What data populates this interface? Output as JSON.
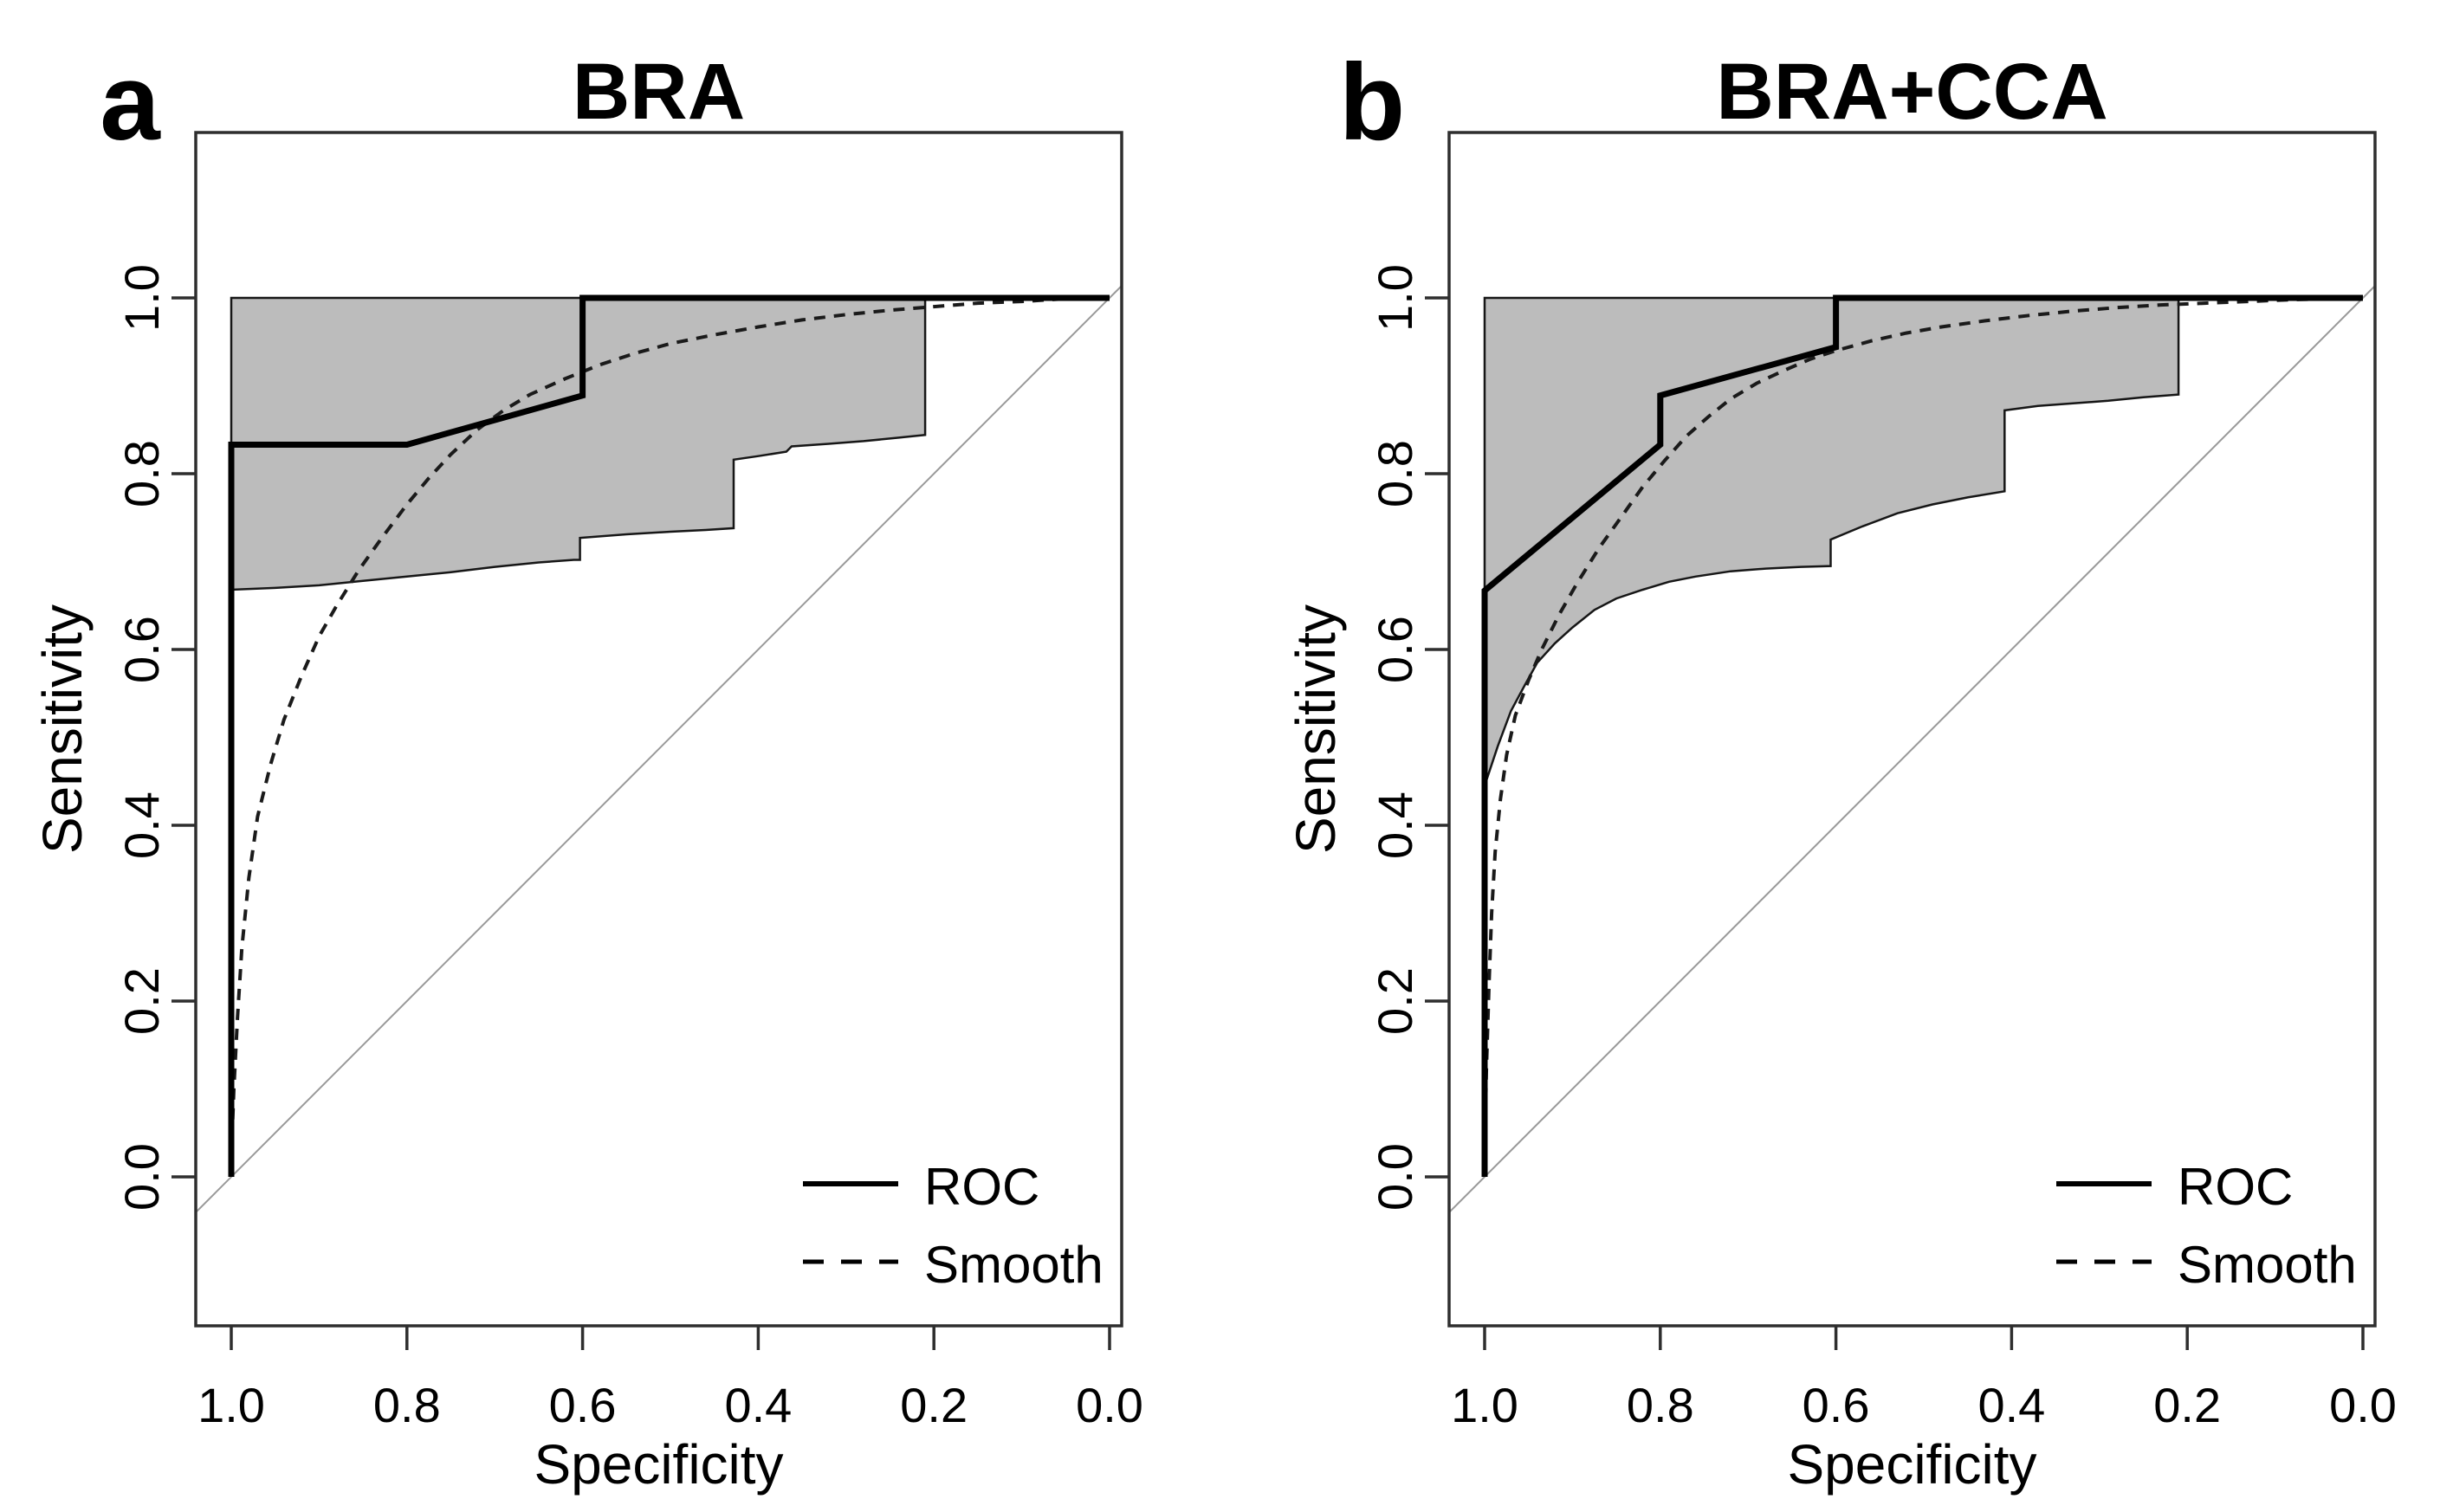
{
  "figure": {
    "background": "#ffffff",
    "panels": 2
  },
  "colors": {
    "band_fill": "#bcbcbc",
    "band_edge": "#161616",
    "roc_line": "#000000",
    "smooth_line": "#1a1a1a",
    "diagonal": "#999999",
    "box": "#2e2e2e",
    "text": "#000000"
  },
  "chart_data": [
    {
      "type": "line",
      "panel_letter": "a",
      "title": "BRA",
      "xlabel": "Specificity",
      "ylabel": "Sensitivity",
      "x_axis": {
        "label": "Specificity",
        "tick_labels": [
          "1.0",
          "0.8",
          "0.6",
          "0.4",
          "0.2",
          "0.0"
        ],
        "tick_values": [
          1.0,
          0.8,
          0.6,
          0.4,
          0.2,
          0.0
        ],
        "reversed": true,
        "range": [
          1.04,
          -0.014
        ],
        "grid": false
      },
      "y_axis": {
        "label": "Sensitivity",
        "tick_labels": [
          "0.0",
          "0.2",
          "0.4",
          "0.6",
          "0.8",
          "1.0"
        ],
        "tick_values": [
          0.0,
          0.2,
          0.4,
          0.6,
          0.8,
          1.0
        ],
        "range": [
          -0.17,
          1.19
        ],
        "grid": false
      },
      "legend": [
        {
          "label": "ROC",
          "style": "solid"
        },
        {
          "label": "Smooth",
          "style": "dashed"
        }
      ],
      "legend_position": "bottom-right",
      "series": [
        {
          "name": "ROC",
          "style": "solid",
          "points": [
            [
              1.0,
              0.0
            ],
            [
              1.0,
              0.833
            ],
            [
              0.8,
              0.833
            ],
            [
              0.6,
              0.889
            ],
            [
              0.6,
              1.0
            ],
            [
              0.0,
              1.0
            ]
          ]
        },
        {
          "name": "Smooth",
          "style": "dashed",
          "points": [
            [
              1.0,
              0.02
            ],
            [
              0.997,
              0.1
            ],
            [
              0.993,
              0.18
            ],
            [
              0.988,
              0.26
            ],
            [
              0.98,
              0.34
            ],
            [
              0.97,
              0.41
            ],
            [
              0.955,
              0.47
            ],
            [
              0.94,
              0.52
            ],
            [
              0.92,
              0.57
            ],
            [
              0.9,
              0.615
            ],
            [
              0.88,
              0.65
            ],
            [
              0.855,
              0.69
            ],
            [
              0.83,
              0.725
            ],
            [
              0.8,
              0.765
            ],
            [
              0.775,
              0.795
            ],
            [
              0.75,
              0.822
            ],
            [
              0.72,
              0.85
            ],
            [
              0.69,
              0.872
            ],
            [
              0.66,
              0.89
            ],
            [
              0.62,
              0.908
            ],
            [
              0.58,
              0.924
            ],
            [
              0.54,
              0.937
            ],
            [
              0.5,
              0.948
            ],
            [
              0.45,
              0.958
            ],
            [
              0.4,
              0.967
            ],
            [
              0.35,
              0.975
            ],
            [
              0.3,
              0.981
            ],
            [
              0.25,
              0.986
            ],
            [
              0.2,
              0.99
            ],
            [
              0.15,
              0.994
            ],
            [
              0.1,
              0.996
            ],
            [
              0.05,
              0.999
            ],
            [
              0.0,
              1.0
            ]
          ]
        },
        {
          "name": "Chance",
          "style": "reference-diagonal",
          "points": [
            [
              1.0,
              0.0
            ],
            [
              0.0,
              1.0
            ]
          ]
        }
      ],
      "confidence_band": {
        "x_range": [
          1.0,
          0.21
        ],
        "upper": [
          [
            1.0,
            1.0
          ],
          [
            0.21,
            1.0
          ]
        ],
        "lower": [
          [
            1.0,
            0.668
          ],
          [
            0.95,
            0.67
          ],
          [
            0.9,
            0.673
          ],
          [
            0.85,
            0.678
          ],
          [
            0.8,
            0.683
          ],
          [
            0.75,
            0.688
          ],
          [
            0.7,
            0.694
          ],
          [
            0.65,
            0.699
          ],
          [
            0.61,
            0.702
          ],
          [
            0.603,
            0.702
          ],
          [
            0.603,
            0.727
          ],
          [
            0.55,
            0.731
          ],
          [
            0.5,
            0.734
          ],
          [
            0.46,
            0.736
          ],
          [
            0.428,
            0.738
          ],
          [
            0.428,
            0.816
          ],
          [
            0.4,
            0.82
          ],
          [
            0.368,
            0.825
          ],
          [
            0.362,
            0.831
          ],
          [
            0.32,
            0.834
          ],
          [
            0.28,
            0.837
          ],
          [
            0.24,
            0.841
          ],
          [
            0.21,
            0.844
          ]
        ]
      }
    },
    {
      "type": "line",
      "panel_letter": "b",
      "title": "BRA+CCA",
      "xlabel": "Specificity",
      "ylabel": "Sensitivity",
      "x_axis": {
        "label": "Specificity",
        "tick_labels": [
          "1.0",
          "0.8",
          "0.6",
          "0.4",
          "0.2",
          "0.0"
        ],
        "tick_values": [
          1.0,
          0.8,
          0.6,
          0.4,
          0.2,
          0.0
        ],
        "reversed": true,
        "range": [
          1.04,
          -0.014
        ],
        "grid": false
      },
      "y_axis": {
        "label": "Sensitivity",
        "tick_labels": [
          "0.0",
          "0.2",
          "0.4",
          "0.6",
          "0.8",
          "1.0"
        ],
        "tick_values": [
          0.0,
          0.2,
          0.4,
          0.6,
          0.8,
          1.0
        ],
        "range": [
          -0.17,
          1.19
        ],
        "grid": false
      },
      "legend": [
        {
          "label": "ROC",
          "style": "solid"
        },
        {
          "label": "Smooth",
          "style": "dashed"
        }
      ],
      "legend_position": "bottom-right",
      "series": [
        {
          "name": "ROC",
          "style": "solid",
          "points": [
            [
              1.0,
              0.0
            ],
            [
              1.0,
              0.667
            ],
            [
              0.8,
              0.833
            ],
            [
              0.8,
              0.889
            ],
            [
              0.6,
              0.944
            ],
            [
              0.6,
              1.0
            ],
            [
              0.0,
              1.0
            ]
          ]
        },
        {
          "name": "Smooth",
          "style": "dashed",
          "points": [
            [
              1.0,
              0.02
            ],
            [
              0.998,
              0.12
            ],
            [
              0.995,
              0.22
            ],
            [
              0.992,
              0.3
            ],
            [
              0.988,
              0.37
            ],
            [
              0.982,
              0.43
            ],
            [
              0.975,
              0.48
            ],
            [
              0.965,
              0.525
            ],
            [
              0.95,
              0.565
            ],
            [
              0.935,
              0.6
            ],
            [
              0.915,
              0.64
            ],
            [
              0.895,
              0.675
            ],
            [
              0.87,
              0.715
            ],
            [
              0.845,
              0.75
            ],
            [
              0.82,
              0.785
            ],
            [
              0.795,
              0.815
            ],
            [
              0.77,
              0.843
            ],
            [
              0.745,
              0.865
            ],
            [
              0.72,
              0.885
            ],
            [
              0.69,
              0.903
            ],
            [
              0.66,
              0.917
            ],
            [
              0.63,
              0.93
            ],
            [
              0.6,
              0.94
            ],
            [
              0.56,
              0.951
            ],
            [
              0.52,
              0.96
            ],
            [
              0.48,
              0.967
            ],
            [
              0.43,
              0.974
            ],
            [
              0.38,
              0.98
            ],
            [
              0.33,
              0.985
            ],
            [
              0.28,
              0.989
            ],
            [
              0.23,
              0.992
            ],
            [
              0.18,
              0.994
            ],
            [
              0.13,
              0.996
            ],
            [
              0.08,
              0.998
            ],
            [
              0.0,
              1.0
            ]
          ]
        },
        {
          "name": "Chance",
          "style": "reference-diagonal",
          "points": [
            [
              1.0,
              0.0
            ],
            [
              0.0,
              1.0
            ]
          ]
        }
      ],
      "confidence_band": {
        "x_range": [
          1.0,
          0.21
        ],
        "upper": [
          [
            1.0,
            1.0
          ],
          [
            0.21,
            1.0
          ]
        ],
        "lower": [
          [
            1.0,
            0.445
          ],
          [
            0.985,
            0.49
          ],
          [
            0.97,
            0.53
          ],
          [
            0.955,
            0.558
          ],
          [
            0.94,
            0.585
          ],
          [
            0.92,
            0.607
          ],
          [
            0.9,
            0.625
          ],
          [
            0.875,
            0.645
          ],
          [
            0.85,
            0.658
          ],
          [
            0.82,
            0.668
          ],
          [
            0.79,
            0.677
          ],
          [
            0.76,
            0.683
          ],
          [
            0.72,
            0.689
          ],
          [
            0.68,
            0.692
          ],
          [
            0.64,
            0.694
          ],
          [
            0.606,
            0.695
          ],
          [
            0.606,
            0.725
          ],
          [
            0.57,
            0.74
          ],
          [
            0.53,
            0.755
          ],
          [
            0.49,
            0.765
          ],
          [
            0.45,
            0.773
          ],
          [
            0.408,
            0.78
          ],
          [
            0.408,
            0.872
          ],
          [
            0.37,
            0.877
          ],
          [
            0.33,
            0.88
          ],
          [
            0.29,
            0.883
          ],
          [
            0.25,
            0.887
          ],
          [
            0.21,
            0.89
          ]
        ]
      }
    }
  ]
}
